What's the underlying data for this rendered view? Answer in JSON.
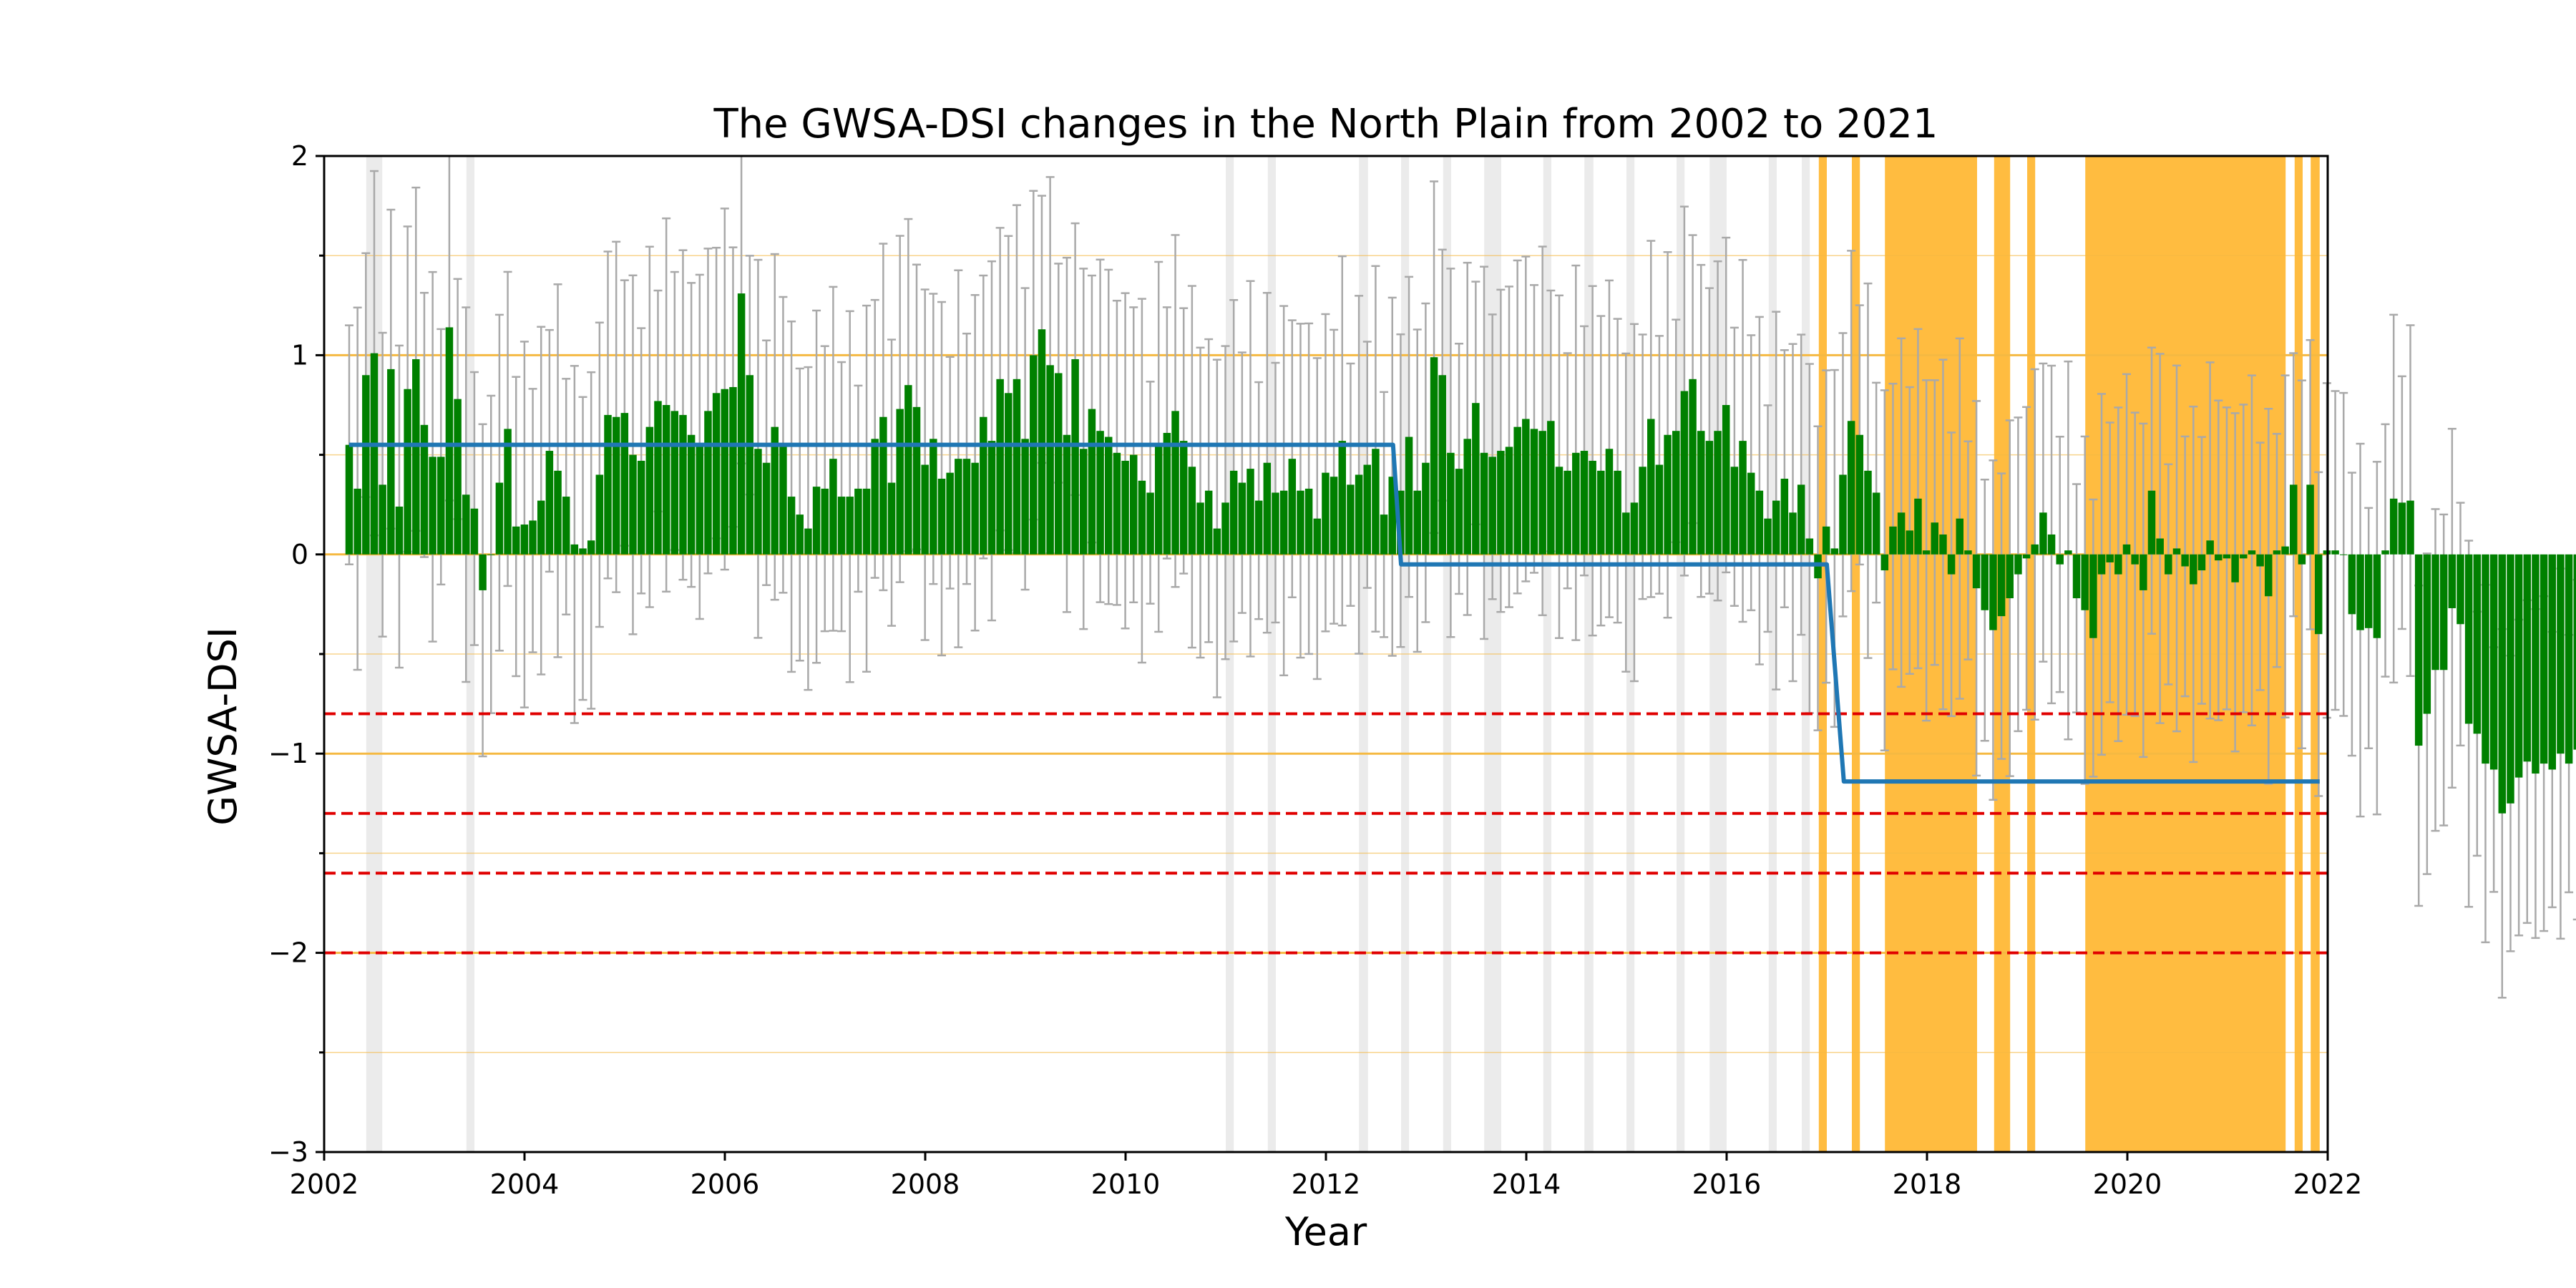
{
  "chart_data": {
    "type": "bar",
    "title": "The GWSA-DSI changes in the North Plain from 2002 to 2021",
    "xlabel": "Year",
    "ylabel": "GWSA-DSI",
    "xlim": [
      2002,
      2022
    ],
    "ylim": [
      -3,
      2
    ],
    "grid": false,
    "legend": "none",
    "x_tick_labels": [
      "2002",
      "2004",
      "2006",
      "2008",
      "2010",
      "2012",
      "2014",
      "2016",
      "2018",
      "2020",
      "2022"
    ],
    "y_tick_labels": [
      "−3",
      "−2",
      "−1",
      "0",
      "1",
      "2"
    ],
    "colors": {
      "bars": "#008000",
      "error_bars": "#a9a9a9",
      "step_line": "#1f77b4",
      "threshold_lines": "#e00000",
      "drought_spans": "#ffa500",
      "minor_spans": "#e6e6e6",
      "reference_lines": "#f5b942"
    },
    "reference_lines_y": [
      -2.5,
      -2.0,
      -1.5,
      -1.0,
      -0.5,
      0,
      0.5,
      1.0,
      1.5
    ],
    "threshold_lines_y": [
      -0.8,
      -1.3,
      -1.6,
      -2.0
    ],
    "step_line": [
      {
        "x0": 2002.25,
        "x1": 2012.67,
        "y": 0.55
      },
      {
        "x0": 2012.75,
        "x1": 2017.0,
        "y": -0.05
      },
      {
        "x0": 2017.17,
        "x1": 2021.92,
        "y": -1.14
      }
    ],
    "drought_spans": [
      [
        2016.92,
        2017.0
      ],
      [
        2017.25,
        2017.33
      ],
      [
        2017.58,
        2018.5
      ],
      [
        2018.67,
        2018.83
      ],
      [
        2019.0,
        2019.08
      ],
      [
        2019.58,
        2021.58
      ],
      [
        2021.67,
        2021.75
      ],
      [
        2021.83,
        2021.92
      ]
    ],
    "minor_spans": [
      [
        2002.42,
        2002.58
      ],
      [
        2003.42,
        2003.5
      ],
      [
        2011.0,
        2011.08
      ],
      [
        2011.42,
        2011.5
      ],
      [
        2012.33,
        2012.42
      ],
      [
        2012.75,
        2012.83
      ],
      [
        2013.17,
        2013.25
      ],
      [
        2013.58,
        2013.75
      ],
      [
        2014.17,
        2014.25
      ],
      [
        2014.58,
        2014.67
      ],
      [
        2015.0,
        2015.08
      ],
      [
        2015.5,
        2015.58
      ],
      [
        2015.83,
        2016.0
      ],
      [
        2016.42,
        2016.5
      ],
      [
        2016.75,
        2016.83
      ]
    ],
    "start_year": 2002.25,
    "month_step": 0.0833,
    "values": [
      0.55,
      0.33,
      0.9,
      1.01,
      0.35,
      0.93,
      0.24,
      0.83,
      0.98,
      0.65,
      0.49,
      0.49,
      1.14,
      0.78,
      0.3,
      0.23,
      -0.18,
      0.0,
      0.36,
      0.63,
      0.14,
      0.15,
      0.17,
      0.27,
      0.52,
      0.42,
      0.29,
      0.05,
      0.03,
      0.07,
      0.4,
      0.7,
      0.69,
      0.71,
      0.5,
      0.47,
      0.64,
      0.77,
      0.75,
      0.72,
      0.7,
      0.6,
      0.54,
      0.72,
      0.81,
      0.83,
      0.84,
      1.31,
      0.9,
      0.53,
      0.46,
      0.64,
      0.55,
      0.29,
      0.2,
      0.13,
      0.34,
      0.33,
      0.48,
      0.29,
      0.29,
      0.33,
      0.33,
      0.58,
      0.69,
      0.36,
      0.73,
      0.85,
      0.74,
      0.45,
      0.58,
      0.38,
      0.41,
      0.48,
      0.48,
      0.46,
      0.69,
      0.57,
      0.88,
      0.81,
      0.88,
      0.58,
      1.0,
      1.13,
      0.95,
      0.91,
      0.6,
      0.98,
      0.53,
      0.73,
      0.62,
      0.59,
      0.51,
      0.47,
      0.5,
      0.37,
      0.31,
      0.54,
      0.61,
      0.72,
      0.57,
      0.44,
      0.26,
      0.32,
      0.13,
      0.26,
      0.42,
      0.36,
      0.43,
      0.27,
      0.46,
      0.31,
      0.32,
      0.48,
      0.32,
      0.33,
      0.18,
      0.41,
      0.39,
      0.57,
      0.35,
      0.4,
      0.45,
      0.53,
      0.2,
      0.39,
      0.32,
      0.59,
      0.32,
      0.46,
      0.99,
      0.9,
      0.51,
      0.43,
      0.58,
      0.76,
      0.51,
      0.49,
      0.52,
      0.54,
      0.64,
      0.68,
      0.63,
      0.62,
      0.67,
      0.44,
      0.42,
      0.51,
      0.52,
      0.47,
      0.42,
      0.53,
      0.42,
      0.21,
      0.26,
      0.44,
      0.68,
      0.45,
      0.6,
      0.62,
      0.82,
      0.88,
      0.62,
      0.57,
      0.62,
      0.75,
      0.44,
      0.57,
      0.41,
      0.32,
      0.18,
      0.27,
      0.38,
      0.21,
      0.35,
      0.08,
      -0.12,
      0.14,
      0.03,
      0.4,
      0.67,
      0.6,
      0.42,
      0.31,
      -0.08,
      0.14,
      0.21,
      0.12,
      0.28,
      0.02,
      0.16,
      0.1,
      -0.1,
      0.18,
      0.02,
      -0.17,
      -0.28,
      -0.38,
      -0.31,
      -0.22,
      -0.1,
      -0.02,
      0.05,
      0.21,
      0.1,
      -0.05,
      0.02,
      -0.22,
      -0.28,
      -0.42,
      -0.1,
      -0.04,
      -0.1,
      0.05,
      -0.05,
      -0.18,
      0.32,
      0.08,
      -0.1,
      0.03,
      -0.06,
      -0.15,
      -0.08,
      0.07,
      -0.03,
      -0.02,
      -0.14,
      -0.02,
      0.02,
      -0.06,
      -0.21,
      0.02,
      0.04,
      0.35,
      -0.05,
      0.35,
      -0.4,
      0.02,
      0.02,
      0.0,
      -0.3,
      -0.38,
      -0.37,
      -0.42,
      0.02,
      0.28,
      0.26,
      0.27,
      -0.96,
      -0.8,
      -0.58,
      -0.58,
      -0.27,
      -0.35,
      -0.85,
      -0.9,
      -1.05,
      -1.08,
      -1.3,
      -1.25,
      -1.12,
      -1.04,
      -1.1,
      -1.05,
      -1.08,
      -1.0,
      -1.05,
      -0.98,
      -1.12,
      -0.96,
      -0.9,
      -0.95,
      -1.05,
      -0.52,
      -0.48,
      -0.42,
      -0.62,
      -1.1,
      -0.45,
      -0.48,
      -0.44,
      -0.58,
      -0.47,
      -0.56,
      -0.62,
      -0.68,
      -0.82,
      -0.8,
      -0.82,
      -0.71,
      -1.56,
      -1.35,
      -1.48,
      -1.63,
      -1.71,
      -1.81,
      -1.58,
      -1.62,
      -2.37,
      -2.06,
      -1.82,
      -1.74,
      -1.58,
      -1.7,
      -1.64,
      -1.76,
      -1.58,
      -1.55,
      -1.42,
      -1.6,
      -1.49,
      -1.98,
      -1.66,
      -1.58,
      -1.62,
      -1.84,
      -1.49,
      -1.3,
      -1.55,
      -1.42,
      -1.7,
      -1.55,
      -1.93,
      -1.48,
      -1.67,
      -1.74,
      -1.22,
      -0.87,
      -1.19,
      -1.33,
      -1.4
    ]
  }
}
